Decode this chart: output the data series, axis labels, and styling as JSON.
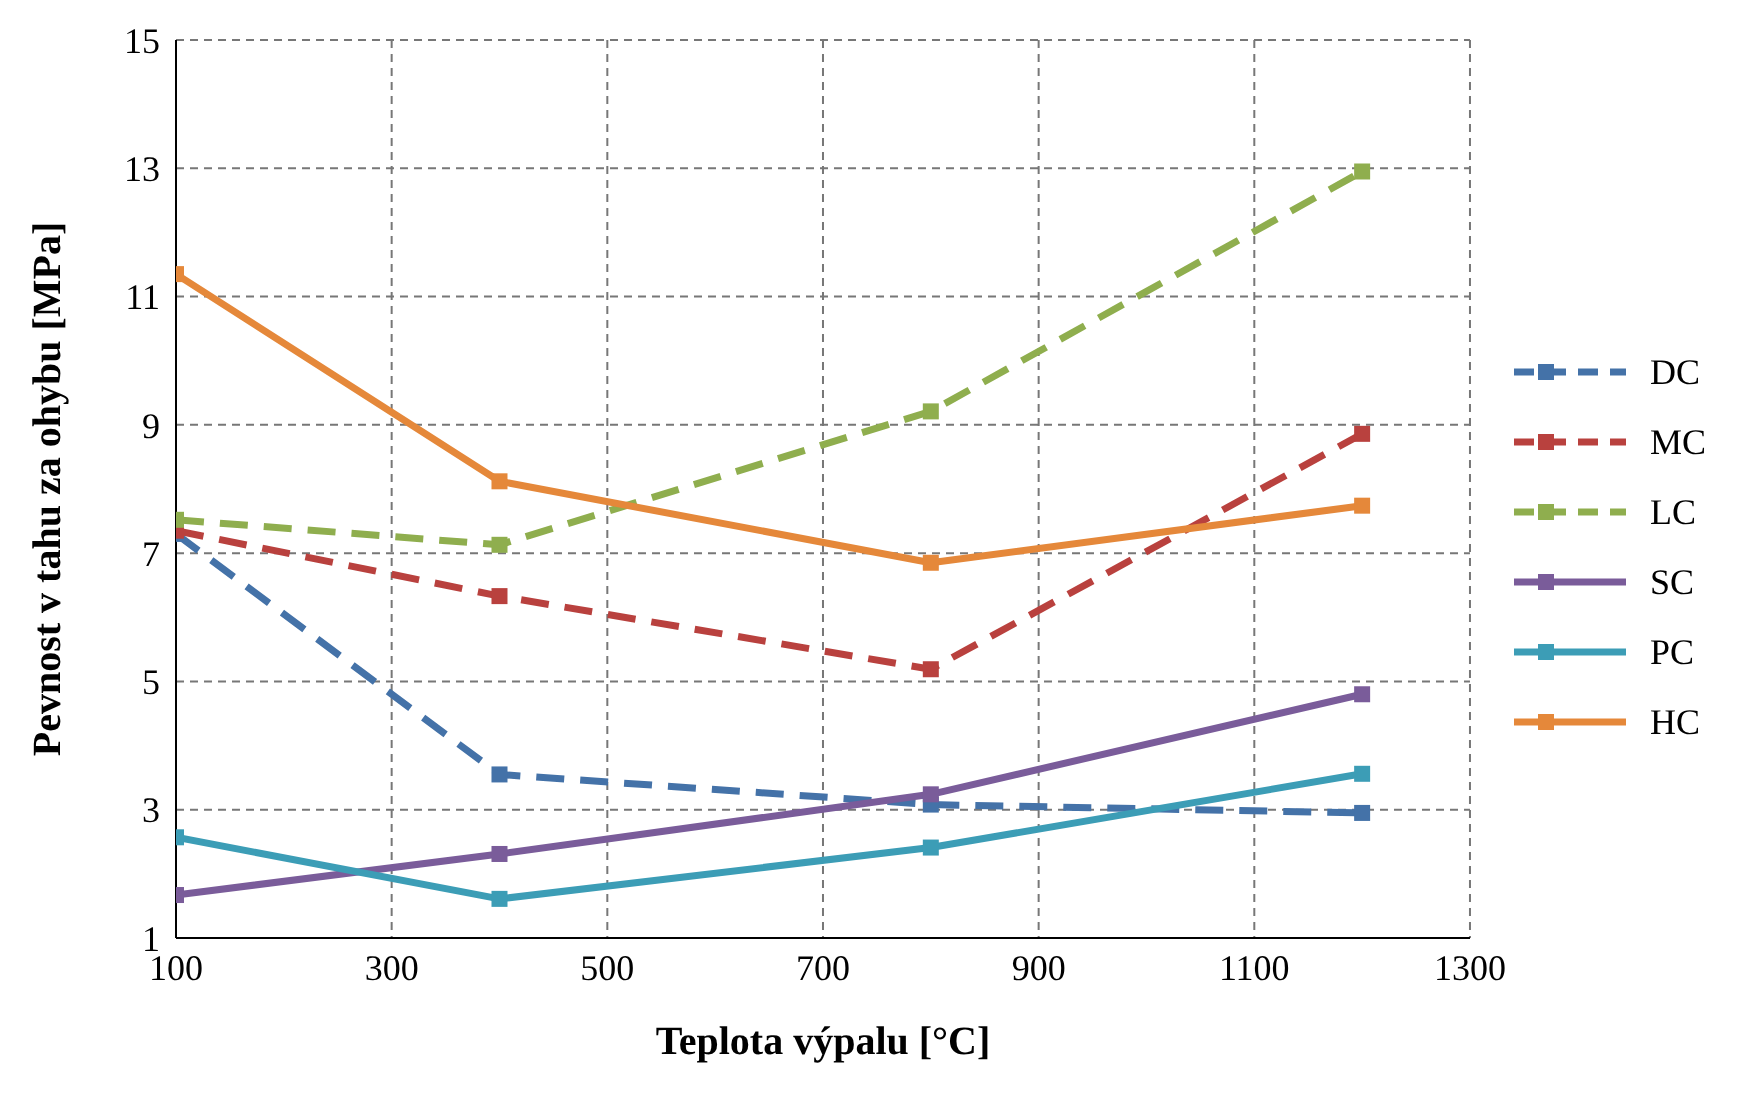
{
  "chart_data": {
    "type": "line",
    "xlabel": "Teplota výpalu [°C]",
    "ylabel": "Pevnost v tahu za ohybu [MPa]",
    "x": [
      100,
      400,
      800,
      1200
    ],
    "xlim": [
      100,
      1300
    ],
    "xticks": [
      100,
      300,
      500,
      700,
      900,
      1100,
      1300
    ],
    "ylim": [
      1,
      15
    ],
    "yticks": [
      1,
      3,
      5,
      7,
      9,
      11,
      13,
      15
    ],
    "grid": true,
    "legend": "right",
    "marker": "square",
    "series": [
      {
        "name": "DC",
        "color": "#4472a8",
        "line_style": "dashed",
        "values": [
          7.3,
          3.55,
          3.08,
          2.95
        ]
      },
      {
        "name": "MC",
        "color": "#b9413e",
        "line_style": "dashed",
        "values": [
          7.35,
          6.33,
          5.19,
          8.86
        ]
      },
      {
        "name": "LC",
        "color": "#8fae4e",
        "line_style": "dashed",
        "values": [
          7.52,
          7.13,
          9.21,
          12.95
        ]
      },
      {
        "name": "SC",
        "color": "#7a5c9a",
        "line_style": "solid",
        "values": [
          1.67,
          2.31,
          3.24,
          4.8
        ]
      },
      {
        "name": "PC",
        "color": "#3c9db6",
        "line_style": "solid",
        "values": [
          2.57,
          1.61,
          2.41,
          3.56
        ]
      },
      {
        "name": "HC",
        "color": "#e5883a",
        "line_style": "solid",
        "values": [
          11.35,
          8.12,
          6.85,
          7.74
        ]
      }
    ]
  }
}
